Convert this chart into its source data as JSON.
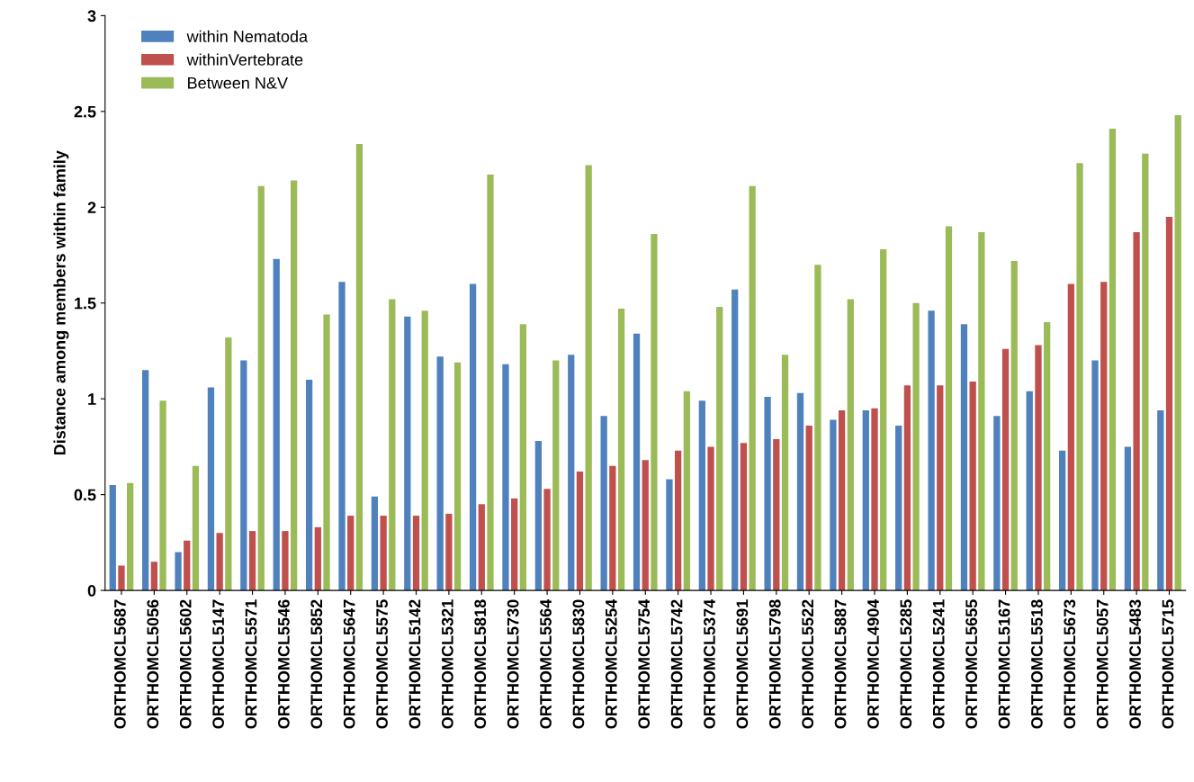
{
  "chart_data": {
    "type": "bar",
    "ylabel": "Distance among members within family",
    "categories": [
      "ORTHOMCL5687",
      "ORTHOMCL5056",
      "ORTHOMCL5602",
      "ORTHOMCL5147",
      "ORTHOMCL5571",
      "ORTHOMCL5546",
      "ORTHOMCL5852",
      "ORTHOMCL5647",
      "ORTHOMCL5575",
      "ORTHOMCL5142",
      "ORTHOMCL5321",
      "ORTHOMCL5818",
      "ORTHOMCL5730",
      "ORTHOMCL5564",
      "ORTHOMCL5830",
      "ORTHOMCL5254",
      "ORTHOMCL5754",
      "ORTHOMCL5742",
      "ORTHOMCL5374",
      "ORTHOMCL5691",
      "ORTHOMCL5798",
      "ORTHOMCL5522",
      "ORTHOMCL5887",
      "ORTHOMCL4904",
      "ORTHOMCL5285",
      "ORTHOMCL5241",
      "ORTHOMCL5655",
      "ORTHOMCL5167",
      "ORTHOMCL5518",
      "ORTHOMCL5673",
      "ORTHOMCL5057",
      "ORTHOMCL5483",
      "ORTHOMCL5715"
    ],
    "series": [
      {
        "name": "within Nematoda",
        "color": "#4f81bd",
        "values": [
          0.55,
          1.15,
          0.2,
          1.06,
          1.2,
          1.73,
          1.1,
          1.61,
          0.49,
          1.43,
          1.22,
          1.6,
          1.18,
          0.78,
          1.23,
          0.91,
          1.34,
          0.58,
          0.99,
          1.57,
          1.01,
          1.03,
          0.89,
          0.94,
          0.86,
          1.46,
          1.39,
          0.91,
          1.04,
          0.73,
          1.2,
          0.75,
          0.94
        ]
      },
      {
        "name": "withinVertebrate",
        "color": "#c0504d",
        "values": [
          0.13,
          0.15,
          0.26,
          0.3,
          0.31,
          0.31,
          0.33,
          0.39,
          0.39,
          0.39,
          0.4,
          0.45,
          0.48,
          0.53,
          0.62,
          0.65,
          0.68,
          0.73,
          0.75,
          0.77,
          0.79,
          0.86,
          0.94,
          0.95,
          1.07,
          1.07,
          1.09,
          1.26,
          1.28,
          1.6,
          1.61,
          1.87,
          1.95
        ]
      },
      {
        "name": "Between N&V",
        "color": "#9bbb59",
        "values": [
          0.56,
          0.99,
          0.65,
          1.32,
          2.11,
          2.14,
          1.44,
          2.33,
          1.52,
          1.46,
          1.19,
          2.17,
          1.39,
          1.2,
          2.22,
          1.47,
          1.86,
          1.04,
          1.48,
          2.11,
          1.23,
          1.7,
          1.52,
          1.78,
          1.5,
          1.9,
          1.87,
          1.72,
          1.4,
          2.23,
          2.41,
          2.28,
          2.48
        ]
      }
    ],
    "ylim": [
      0,
      3
    ],
    "yticks": [
      0,
      0.5,
      1,
      1.5,
      2,
      2.5,
      3
    ],
    "grid": false,
    "legend": "top left"
  }
}
